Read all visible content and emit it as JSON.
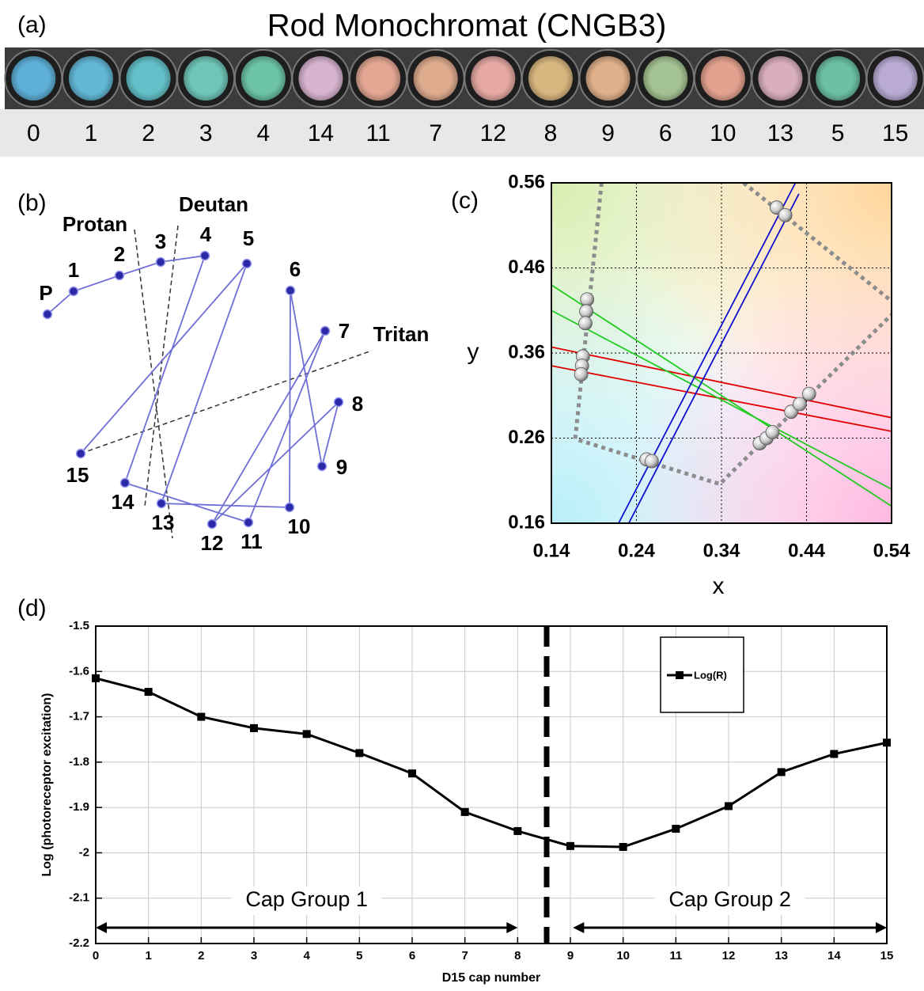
{
  "panel_a": {
    "label": "(a)",
    "title": "Rod Monochromat (CNGB3)",
    "caps": [
      {
        "number": 0,
        "color": "#5eb0d8"
      },
      {
        "number": 1,
        "color": "#62b7d6"
      },
      {
        "number": 2,
        "color": "#63c0c8"
      },
      {
        "number": 3,
        "color": "#6fc6b8"
      },
      {
        "number": 4,
        "color": "#6cc3a6"
      },
      {
        "number": 14,
        "color": "#d7b3cf"
      },
      {
        "number": 11,
        "color": "#e3a793"
      },
      {
        "number": 7,
        "color": "#deab8f"
      },
      {
        "number": 12,
        "color": "#e5a8a2"
      },
      {
        "number": 8,
        "color": "#d9b680"
      },
      {
        "number": 9,
        "color": "#e0b08a"
      },
      {
        "number": 6,
        "color": "#a4c392"
      },
      {
        "number": 10,
        "color": "#e3a28f"
      },
      {
        "number": 13,
        "color": "#d9aebf"
      },
      {
        "number": 5,
        "color": "#6cc0a3"
      },
      {
        "number": 15,
        "color": "#b9abd3"
      }
    ]
  },
  "panel_b": {
    "label": "(b)",
    "nodes": [
      "P",
      "1",
      "2",
      "3",
      "4",
      "5",
      "6",
      "7",
      "8",
      "9",
      "10",
      "11",
      "12",
      "13",
      "14",
      "15"
    ],
    "confusion_axes": [
      "Protan",
      "Deutan",
      "Tritan"
    ],
    "line_color": "#6f6fd6",
    "node_color": "#2a2aa8"
  },
  "chart_data": [
    {
      "type": "scatter",
      "panel_label": "(c)",
      "x_label": "x",
      "y_label": "y",
      "xlim": [
        0.14,
        0.54
      ],
      "ylim": [
        0.16,
        0.56
      ],
      "xticks": [
        0.14,
        0.24,
        0.34,
        0.44,
        0.54
      ],
      "yticks": [
        0.16,
        0.26,
        0.36,
        0.46,
        0.56
      ],
      "grid": true,
      "series": [
        {
          "mode": "dotted",
          "color": "#8c8c8c",
          "x": [
            0.199,
            0.168,
            0.338,
            0.54
          ],
          "y": [
            0.56,
            0.259,
            0.206,
            0.405
          ]
        },
        {
          "mode": "dotted",
          "color": "#8c8c8c",
          "x": [
            0.366,
            0.54
          ],
          "y": [
            0.56,
            0.421
          ]
        },
        {
          "mode": "line",
          "color": "#e00000",
          "x": [
            0.14,
            0.54
          ],
          "y": [
            0.367,
            0.284
          ]
        },
        {
          "mode": "line",
          "color": "#e00000",
          "x": [
            0.14,
            0.54
          ],
          "y": [
            0.345,
            0.268
          ]
        },
        {
          "mode": "line",
          "color": "#22cc22",
          "x": [
            0.14,
            0.54
          ],
          "y": [
            0.44,
            0.18
          ]
        },
        {
          "mode": "line",
          "color": "#22cc22",
          "x": [
            0.14,
            0.54
          ],
          "y": [
            0.41,
            0.2
          ]
        },
        {
          "mode": "line",
          "color": "#1010d0",
          "x": [
            0.219,
            0.427
          ],
          "y": [
            0.16,
            0.56
          ]
        },
        {
          "mode": "line",
          "color": "#1010d0",
          "x": [
            0.231,
            0.431
          ],
          "y": [
            0.16,
            0.547
          ]
        },
        {
          "mode": "markers",
          "color": "#c8c8c8",
          "x": [
            0.182,
            0.181,
            0.18,
            0.177,
            0.176,
            0.175,
            0.252,
            0.258,
            0.385,
            0.393,
            0.4,
            0.422,
            0.432,
            0.443,
            0.405,
            0.415
          ],
          "y": [
            0.423,
            0.409,
            0.395,
            0.356,
            0.345,
            0.335,
            0.235,
            0.233,
            0.254,
            0.26,
            0.267,
            0.291,
            0.3,
            0.312,
            0.531,
            0.522
          ]
        }
      ]
    },
    {
      "type": "line",
      "panel_label": "(d)",
      "x_label": "D15 cap number",
      "y_label": "Log (photoreceptor excitation)",
      "x": [
        0,
        1,
        2,
        3,
        4,
        5,
        6,
        7,
        8,
        9,
        10,
        11,
        12,
        13,
        14,
        15
      ],
      "xlim": [
        0,
        15
      ],
      "ylim": [
        -2.2,
        -1.5
      ],
      "xticks": [
        0,
        1,
        2,
        3,
        4,
        5,
        6,
        7,
        8,
        9,
        10,
        11,
        12,
        13,
        14,
        15
      ],
      "yticks": [
        -2.2,
        -2.1,
        -2,
        -1.9,
        -1.8,
        -1.7,
        -1.6,
        -1.5
      ],
      "grid": true,
      "legend": "top-right",
      "series": [
        {
          "name": "Log(R)",
          "color": "#000000",
          "values": [
            -1.615,
            -1.645,
            -1.7,
            -1.725,
            -1.738,
            -1.78,
            -1.825,
            -1.91,
            -1.952,
            -1.985,
            -1.987,
            -1.947,
            -1.897,
            -1.822,
            -1.782,
            -1.757
          ]
        }
      ],
      "divider_x": 8.55,
      "annotations": [
        {
          "text": "Cap Group 1",
          "span": [
            0,
            8
          ],
          "y": -2.165
        },
        {
          "text": "Cap Group 2",
          "span": [
            9.05,
            15
          ],
          "y": -2.165
        }
      ]
    }
  ]
}
